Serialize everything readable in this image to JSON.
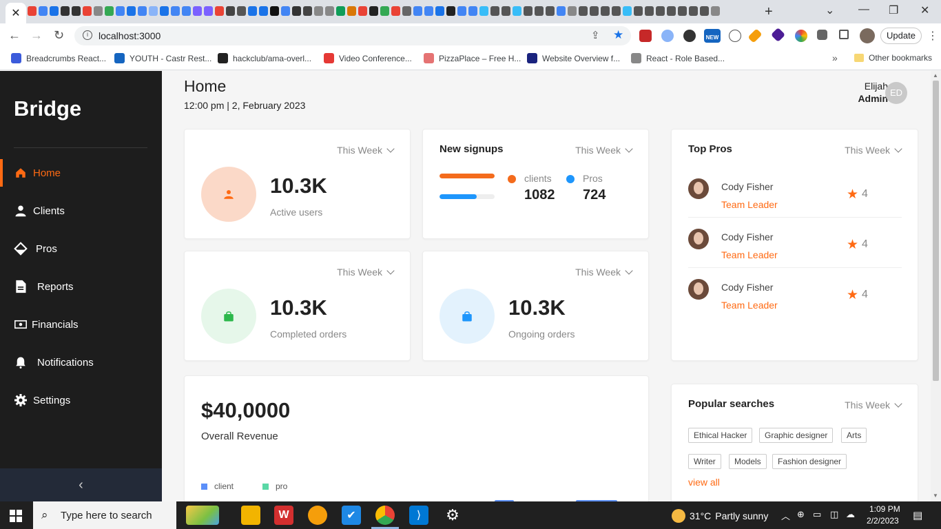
{
  "browser": {
    "url": "localhost:3000",
    "update_label": "Update",
    "new_badge": "NEW",
    "bookmarks": [
      {
        "label": "Breadcrumbs React...",
        "color": "#3b5bdb"
      },
      {
        "label": "YOUTH - Castr Rest...",
        "color": "#1565c0"
      },
      {
        "label": "hackclub/ama-overl...",
        "color": "#222222"
      },
      {
        "label": "Video Conference...",
        "color": "#e53935"
      },
      {
        "label": "PizzaPlace – Free H...",
        "color": "#e57373"
      },
      {
        "label": "Website Overview f...",
        "color": "#1a237e"
      },
      {
        "label": "React - Role Based...",
        "color": "#888888"
      }
    ],
    "other_bookmarks": "Other bookmarks"
  },
  "sidebar": {
    "brand": "Bridge",
    "items": [
      {
        "label": "Home",
        "icon": "home-icon",
        "active": true
      },
      {
        "label": "Clients",
        "icon": "user-icon",
        "active": false
      },
      {
        "label": "Pros",
        "icon": "diamond-icon",
        "active": false
      },
      {
        "label": "Reports",
        "icon": "document-icon",
        "active": false
      },
      {
        "label": "Financials",
        "icon": "money-icon",
        "active": false
      },
      {
        "label": "Notifications",
        "icon": "bell-icon",
        "active": false
      },
      {
        "label": "Settings",
        "icon": "gear-icon",
        "active": false
      }
    ],
    "collapse_icon": "chevron-left-icon"
  },
  "header": {
    "title": "Home",
    "datetime": "12:00 pm | 2, February 2023",
    "user_name": "Elijah",
    "user_role": "Admin",
    "user_initials": "ED"
  },
  "filter_label": "This Week",
  "stats": {
    "active_users": {
      "value": "10.3K",
      "label": "Active users",
      "color": "#ff6a13",
      "bg": "#fbd9c8"
    },
    "completed_orders": {
      "value": "10.3K",
      "label": "Completed orders",
      "color": "#2db84c",
      "bg": "#e6f7ea"
    },
    "ongoing_orders": {
      "value": "10.3K",
      "label": "Ongoing orders",
      "color": "#1e96fc",
      "bg": "#e3f2fd"
    }
  },
  "signups": {
    "title": "New signups",
    "clients_label": "clients",
    "clients_value": "1082",
    "clients_fraction": 1.0,
    "clients_color": "#f46b1c",
    "pros_label": "Pros",
    "pros_value": "724",
    "pros_fraction": 0.67,
    "pros_color": "#1e96fc"
  },
  "top_pros": {
    "title": "Top Pros",
    "items": [
      {
        "name": "Cody Fisher",
        "role": "Team Leader",
        "rating": "4"
      },
      {
        "name": "Cody Fisher",
        "role": "Team Leader",
        "rating": "4"
      },
      {
        "name": "Cody Fisher",
        "role": "Team Leader",
        "rating": "4"
      }
    ]
  },
  "revenue": {
    "value": "$40,0000",
    "label": "Overall Revenue",
    "legend": [
      {
        "label": "client",
        "color": "#5b8ff9"
      },
      {
        "label": "pro",
        "color": "#5ad8a6"
      }
    ]
  },
  "popular_searches": {
    "title": "Popular searches",
    "tags": [
      "Ethical Hacker",
      "Graphic designer",
      "Arts",
      "Writer",
      "Models",
      "Fashion designer"
    ],
    "view_all": "view all"
  },
  "taskbar": {
    "search_placeholder": "Type here to search",
    "weather_temp": "31°C",
    "weather_desc": "Partly sunny",
    "time": "1:09 PM",
    "date": "2/2/2023"
  }
}
